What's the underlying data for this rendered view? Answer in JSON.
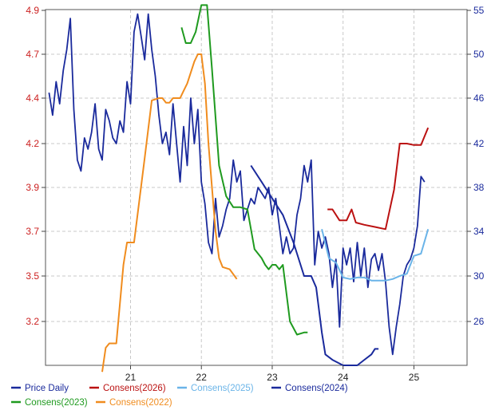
{
  "chart_data": {
    "type": "line",
    "left_axis": {
      "ticks": [
        3.2,
        3.5,
        3.7,
        3.9,
        4.2,
        4.4,
        4.7,
        4.9
      ],
      "color": "#cc2222"
    },
    "right_axis": {
      "ticks": [
        26,
        30,
        34,
        38,
        42,
        46,
        50,
        55
      ],
      "color": "#1a2a9c"
    },
    "x_axis": {
      "ticks": [
        {
          "label": "21",
          "x": 2021.0
        },
        {
          "label": "22",
          "x": 2022.0
        },
        {
          "label": "23",
          "x": 2023.0
        },
        {
          "label": "24",
          "x": 2024.0
        },
        {
          "label": "25",
          "x": 2025.0
        }
      ],
      "range": [
        2019.8,
        2025.75
      ]
    },
    "grid": true,
    "legend_position": "bottom",
    "series": [
      {
        "name": "Price Daily",
        "axis": "right",
        "color": "#1a2a9c",
        "x": [
          2019.85,
          2019.9,
          2019.95,
          2020.0,
          2020.05,
          2020.1,
          2020.15,
          2020.2,
          2020.25,
          2020.3,
          2020.35,
          2020.4,
          2020.45,
          2020.5,
          2020.55,
          2020.6,
          2020.65,
          2020.7,
          2020.75,
          2020.8,
          2020.85,
          2020.9,
          2020.95,
          2021.0,
          2021.05,
          2021.1,
          2021.15,
          2021.2,
          2021.25,
          2021.3,
          2021.35,
          2021.4,
          2021.45,
          2021.5,
          2021.55,
          2021.6,
          2021.65,
          2021.7,
          2021.75,
          2021.8,
          2021.85,
          2021.9,
          2021.95,
          2022.0,
          2022.05,
          2022.1,
          2022.15,
          2022.2,
          2022.25,
          2022.3,
          2022.35,
          2022.4,
          2022.45,
          2022.5,
          2022.55,
          2022.6,
          2022.65,
          2022.7,
          2022.75,
          2022.8,
          2022.85,
          2022.9,
          2022.95,
          2023.0,
          2023.05,
          2023.1,
          2023.15,
          2023.2,
          2023.25,
          2023.3,
          2023.35,
          2023.4,
          2023.45,
          2023.5,
          2023.55,
          2023.6,
          2023.65,
          2023.7,
          2023.75,
          2023.8,
          2023.85,
          2023.9,
          2023.95,
          2024.0,
          2024.05,
          2024.1,
          2024.15,
          2024.2,
          2024.25,
          2024.3,
          2024.35,
          2024.4,
          2024.45,
          2024.5,
          2024.55,
          2024.6,
          2024.65,
          2024.7,
          2024.75,
          2024.8,
          2024.85,
          2024.9,
          2024.95,
          2025.0,
          2025.05,
          2025.1,
          2025.15
        ],
        "y": [
          46.5,
          44.5,
          47.5,
          45.5,
          48.5,
          50.5,
          54.0,
          45.0,
          40.5,
          39.5,
          42.5,
          41.5,
          43.0,
          45.5,
          41.5,
          40.5,
          45.0,
          44.0,
          42.5,
          42.0,
          44.0,
          43.0,
          47.5,
          45.5,
          52.5,
          54.5,
          52.0,
          49.5,
          54.5,
          50.5,
          48.0,
          44.5,
          42.0,
          43.0,
          41.0,
          45.5,
          42.0,
          38.5,
          43.5,
          40.0,
          46.0,
          42.0,
          45.0,
          38.5,
          36.5,
          33.0,
          32.0,
          37.0,
          33.5,
          34.5,
          36.0,
          37.0,
          40.5,
          38.5,
          39.5,
          35.0,
          36.0,
          37.0,
          36.5,
          38.0,
          37.5,
          37.0,
          38.0,
          35.5,
          37.0,
          34.5,
          32.0,
          33.5,
          32.0,
          32.5,
          35.5,
          37.0,
          40.0,
          38.5,
          40.5,
          31.0,
          34.0,
          32.5,
          33.5,
          32.0,
          29.0,
          31.5,
          25.5,
          32.5,
          31.0,
          32.5,
          29.5,
          33.0,
          30.0,
          32.5,
          29.0,
          31.5,
          32.0,
          30.5,
          32.0,
          29.5,
          25.5,
          23.0,
          25.5,
          27.5,
          30.0,
          31.0,
          31.5,
          32.5,
          34.5,
          39.0,
          38.5
        ]
      },
      {
        "name": "Consens(2026)",
        "axis": "left",
        "color": "#bb1111",
        "x": [
          2023.78,
          2023.85,
          2023.95,
          2024.05,
          2024.12,
          2024.18,
          2024.3,
          2024.45,
          2024.6,
          2024.72,
          2024.8,
          2024.9,
          2025.0,
          2025.1,
          2025.2
        ],
        "y": [
          3.8,
          3.8,
          3.75,
          3.75,
          3.8,
          3.74,
          3.73,
          3.72,
          3.71,
          3.89,
          4.2,
          4.2,
          4.19,
          4.19,
          4.27
        ]
      },
      {
        "name": "Consens(2025)",
        "axis": "left",
        "color": "#6ab4e8",
        "x": [
          2023.7,
          2023.8,
          2023.9,
          2024.0,
          2024.1,
          2024.2,
          2024.3,
          2024.4,
          2024.5,
          2024.6,
          2024.7,
          2024.8,
          2024.9,
          2025.0,
          2025.1,
          2025.2
        ],
        "y": [
          3.71,
          3.58,
          3.56,
          3.49,
          3.48,
          3.49,
          3.49,
          3.47,
          3.47,
          3.47,
          3.48,
          3.5,
          3.51,
          3.59,
          3.6,
          3.71
        ]
      },
      {
        "name": "Consens(2024)",
        "axis": "right",
        "color": "#1a2a9c",
        "x": [
          2022.7,
          2022.85,
          2023.0,
          2023.15,
          2023.3,
          2023.45,
          2023.5,
          2023.55,
          2023.62,
          2023.7,
          2023.75,
          2023.85,
          2024.0,
          2024.1,
          2024.2,
          2024.3,
          2024.4,
          2024.45,
          2024.5
        ],
        "y": [
          40.0,
          38.5,
          37.0,
          35.5,
          33.0,
          30.0,
          30.0,
          30.0,
          29.0,
          25.0,
          23.0,
          22.5,
          22.0,
          22.0,
          22.0,
          22.5,
          23.0,
          23.5,
          23.5
        ]
      },
      {
        "name": "Consens(2023)",
        "axis": "left",
        "color": "#1f9a1f",
        "x": [
          2021.72,
          2021.78,
          2021.85,
          2021.92,
          2022.0,
          2022.08,
          2022.15,
          2022.25,
          2022.35,
          2022.45,
          2022.55,
          2022.65,
          2022.75,
          2022.85,
          2022.9,
          2022.95,
          2023.0,
          2023.05,
          2023.1,
          2023.15,
          2023.25,
          2023.35,
          2023.45,
          2023.5
        ],
        "y": [
          4.82,
          4.75,
          4.75,
          4.8,
          4.92,
          4.92,
          4.6,
          4.05,
          3.86,
          3.81,
          3.81,
          3.8,
          3.62,
          3.58,
          3.55,
          3.53,
          3.55,
          3.55,
          3.53,
          3.55,
          3.2,
          3.14,
          3.15,
          3.15
        ]
      },
      {
        "name": "Consens(2022)",
        "axis": "left",
        "color": "#f08c1e",
        "x": [
          2020.6,
          2020.65,
          2020.7,
          2020.8,
          2020.9,
          2020.95,
          2021.05,
          2021.2,
          2021.3,
          2021.4,
          2021.45,
          2021.5,
          2021.55,
          2021.6,
          2021.65,
          2021.7,
          2021.75,
          2021.8,
          2021.9,
          2021.95,
          2022.0,
          2022.05,
          2022.1,
          2022.15,
          2022.2,
          2022.25,
          2022.3,
          2022.4,
          2022.5
        ],
        "y": [
          2.97,
          3.08,
          3.1,
          3.1,
          3.55,
          3.65,
          3.65,
          4.1,
          4.39,
          4.4,
          4.4,
          4.38,
          4.38,
          4.4,
          4.4,
          4.4,
          4.45,
          4.5,
          4.65,
          4.7,
          4.7,
          4.5,
          4.2,
          3.9,
          3.7,
          3.58,
          3.54,
          3.53,
          3.48
        ]
      }
    ]
  }
}
